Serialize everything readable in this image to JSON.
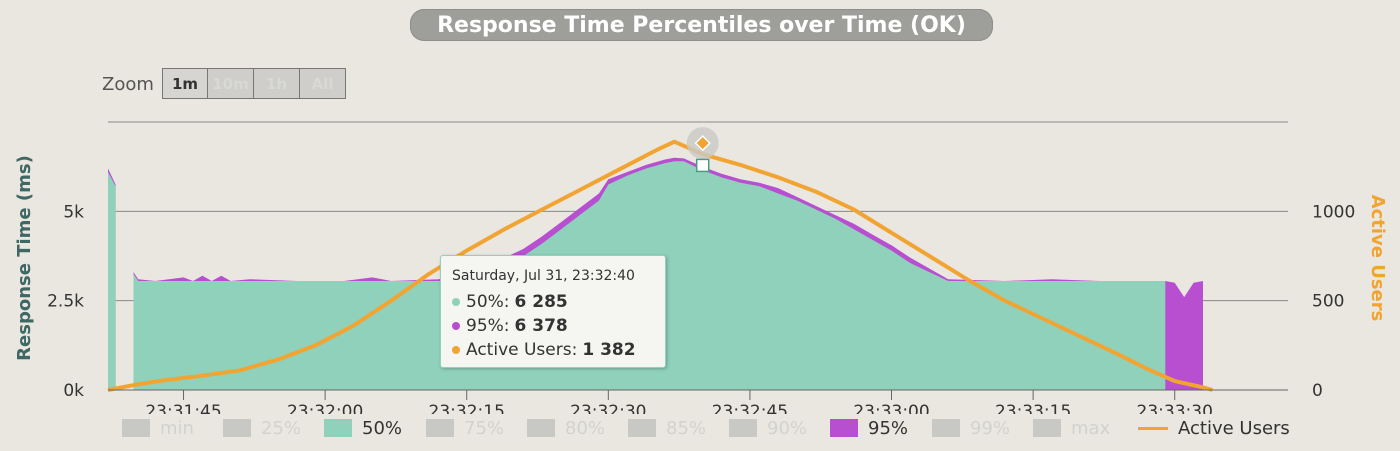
{
  "title": "Response Time Percentiles over Time (OK)",
  "zoom": {
    "label": "Zoom",
    "buttons": [
      "1m",
      "10m",
      "1h",
      "All"
    ],
    "active": "1m"
  },
  "colors": {
    "p50": "#8fd1ba",
    "p95": "#b84fd0",
    "users": "#f2a433",
    "grid": "#888888",
    "bg": "#e9e7e0",
    "legend_inactive": "#c8c8c5"
  },
  "chart_data": {
    "type": "area",
    "ylabel_left": "Response Time (ms)",
    "ylabel_right": "Active Users",
    "y_left_ticks": [
      {
        "value": 0,
        "label": "0k"
      },
      {
        "value": 2500,
        "label": "2.5k"
      },
      {
        "value": 5000,
        "label": "5k"
      }
    ],
    "y_right_ticks": [
      {
        "value": 0,
        "label": "0"
      },
      {
        "value": 500,
        "label": "500"
      },
      {
        "value": 1000,
        "label": "1000"
      }
    ],
    "y_left_max": 7500,
    "y_right_max": 1500,
    "x_start": "23:31:37",
    "x_end": "23:33:42",
    "x_ticks": [
      "23:31:45",
      "23:32:00",
      "23:32:15",
      "23:32:30",
      "23:32:45",
      "23:33:00",
      "23:33:15",
      "23:33:30"
    ],
    "series": [
      {
        "name": "50%",
        "points": [
          [
            0,
            6100
          ],
          [
            0.8,
            5700
          ],
          [
            0.8,
            0
          ],
          [
            2.7,
            0
          ],
          [
            2.7,
            3250
          ],
          [
            3.2,
            3050
          ],
          [
            5,
            3050
          ],
          [
            10,
            3050
          ],
          [
            15,
            3050
          ],
          [
            20,
            3050
          ],
          [
            25,
            3050
          ],
          [
            30,
            3050
          ],
          [
            35,
            3050
          ],
          [
            38,
            3150
          ],
          [
            40,
            3300
          ],
          [
            42,
            3500
          ],
          [
            44,
            3750
          ],
          [
            46,
            4100
          ],
          [
            48,
            4500
          ],
          [
            50,
            4900
          ],
          [
            52,
            5300
          ],
          [
            53,
            5750
          ],
          [
            55,
            6000
          ],
          [
            57,
            6200
          ],
          [
            59,
            6350
          ],
          [
            60,
            6400
          ],
          [
            61,
            6400
          ],
          [
            63,
            6150
          ],
          [
            65,
            5950
          ],
          [
            67,
            5800
          ],
          [
            69,
            5700
          ],
          [
            71,
            5500
          ],
          [
            73,
            5300
          ],
          [
            75,
            5050
          ],
          [
            77,
            4800
          ],
          [
            79,
            4500
          ],
          [
            81,
            4200
          ],
          [
            83,
            3900
          ],
          [
            85,
            3550
          ],
          [
            87,
            3300
          ],
          [
            89,
            3050
          ],
          [
            95,
            3050
          ],
          [
            100,
            3050
          ],
          [
            105,
            3050
          ],
          [
            110,
            3050
          ],
          [
            112,
            3050
          ],
          [
            112,
            0
          ]
        ]
      },
      {
        "name": "95%",
        "points": [
          [
            0,
            6200
          ],
          [
            0.8,
            5750
          ],
          [
            0.8,
            0
          ],
          [
            2.7,
            0
          ],
          [
            2.7,
            3300
          ],
          [
            3.2,
            3100
          ],
          [
            5,
            3050
          ],
          [
            8,
            3150
          ],
          [
            9,
            3050
          ],
          [
            10,
            3200
          ],
          [
            11,
            3050
          ],
          [
            12,
            3200
          ],
          [
            13,
            3050
          ],
          [
            15,
            3100
          ],
          [
            20,
            3050
          ],
          [
            25,
            3050
          ],
          [
            28,
            3150
          ],
          [
            30,
            3050
          ],
          [
            35,
            3100
          ],
          [
            38,
            3250
          ],
          [
            40,
            3450
          ],
          [
            42,
            3700
          ],
          [
            44,
            3950
          ],
          [
            46,
            4300
          ],
          [
            48,
            4700
          ],
          [
            50,
            5100
          ],
          [
            52,
            5500
          ],
          [
            53,
            5900
          ],
          [
            55,
            6100
          ],
          [
            57,
            6300
          ],
          [
            59,
            6450
          ],
          [
            60,
            6500
          ],
          [
            61,
            6480
          ],
          [
            63,
            6250
          ],
          [
            65,
            6050
          ],
          [
            67,
            5900
          ],
          [
            69,
            5800
          ],
          [
            71,
            5650
          ],
          [
            73,
            5400
          ],
          [
            75,
            5150
          ],
          [
            77,
            4900
          ],
          [
            79,
            4650
          ],
          [
            81,
            4350
          ],
          [
            83,
            4050
          ],
          [
            85,
            3700
          ],
          [
            87,
            3400
          ],
          [
            89,
            3100
          ],
          [
            95,
            3050
          ],
          [
            100,
            3100
          ],
          [
            105,
            3050
          ],
          [
            110,
            3050
          ],
          [
            112,
            3050
          ],
          [
            113,
            3000
          ],
          [
            114,
            2600
          ],
          [
            115,
            3000
          ],
          [
            116,
            3050
          ],
          [
            116,
            0
          ],
          [
            111,
            0
          ]
        ]
      },
      {
        "name": "Active Users",
        "points": [
          [
            0,
            0
          ],
          [
            3,
            30
          ],
          [
            6,
            55
          ],
          [
            10,
            80
          ],
          [
            14,
            110
          ],
          [
            18,
            170
          ],
          [
            22,
            250
          ],
          [
            26,
            360
          ],
          [
            30,
            500
          ],
          [
            34,
            650
          ],
          [
            38,
            780
          ],
          [
            42,
            900
          ],
          [
            46,
            1010
          ],
          [
            50,
            1120
          ],
          [
            54,
            1230
          ],
          [
            58,
            1340
          ],
          [
            60,
            1390
          ],
          [
            63,
            1320
          ],
          [
            67,
            1260
          ],
          [
            71,
            1190
          ],
          [
            75,
            1110
          ],
          [
            79,
            1010
          ],
          [
            83,
            880
          ],
          [
            87,
            750
          ],
          [
            91,
            620
          ],
          [
            95,
            500
          ],
          [
            99,
            400
          ],
          [
            103,
            300
          ],
          [
            107,
            200
          ],
          [
            110,
            120
          ],
          [
            113,
            50
          ],
          [
            116,
            15
          ],
          [
            117,
            0
          ]
        ]
      }
    ],
    "legend": [
      {
        "name": "min",
        "active": false
      },
      {
        "name": "25%",
        "active": false
      },
      {
        "name": "50%",
        "active": true
      },
      {
        "name": "75%",
        "active": false
      },
      {
        "name": "80%",
        "active": false
      },
      {
        "name": "85%",
        "active": false
      },
      {
        "name": "90%",
        "active": false
      },
      {
        "name": "95%",
        "active": true
      },
      {
        "name": "99%",
        "active": false
      },
      {
        "name": "max",
        "active": false
      },
      {
        "name": "Active Users",
        "active": true
      }
    ],
    "tooltip": {
      "date": "Saturday, Jul 31, 23:32:40",
      "rows": [
        {
          "label": "50%:",
          "value": "6 285"
        },
        {
          "label": "95%:",
          "value": "6 378"
        },
        {
          "label": "Active Users:",
          "value": "1 382"
        }
      ]
    }
  }
}
